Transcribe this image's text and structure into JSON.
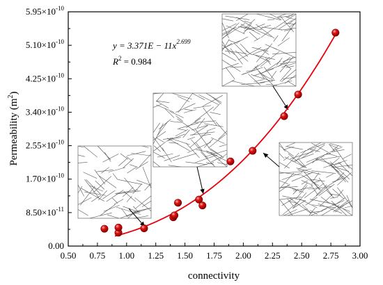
{
  "chart_data": {
    "type": "scatter",
    "xlabel": "connectivity",
    "ylabel_main": "Permeability (m",
    "ylabel_sup": "2",
    "ylabel_close": ")",
    "xlim": [
      0.5,
      3.0
    ],
    "ylim": [
      0,
      5.95e-10
    ],
    "x_ticks": [
      0.5,
      0.75,
      1.0,
      1.25,
      1.5,
      1.75,
      2.0,
      2.25,
      2.5,
      2.75,
      3.0
    ],
    "x_tick_labels": [
      "0.50",
      "0.75",
      "1.00",
      "1.25",
      "1.50",
      "1.75",
      "2.00",
      "2.25",
      "2.50",
      "2.75",
      "3.00"
    ],
    "y_ticks": [
      0,
      8.5e-11,
      1.7e-10,
      2.55e-10,
      3.4e-10,
      4.25e-10,
      5.1e-10,
      5.95e-10
    ],
    "y_tick_labels": [
      {
        "mant": "0.00",
        "exp": ""
      },
      {
        "mant": "8.50×10",
        "exp": "-11"
      },
      {
        "mant": "1.70×10",
        "exp": "-10"
      },
      {
        "mant": "2.55×10",
        "exp": "-10"
      },
      {
        "mant": "3.40×10",
        "exp": "-10"
      },
      {
        "mant": "4.25×10",
        "exp": "-10"
      },
      {
        "mant": "5.10×10",
        "exp": "-10"
      },
      {
        "mant": "5.95×10",
        "exp": "-10"
      }
    ],
    "points": [
      {
        "x": 0.81,
        "y": 4.4e-11
      },
      {
        "x": 0.93,
        "y": 3.4e-11
      },
      {
        "x": 0.93,
        "y": 4.7e-11
      },
      {
        "x": 1.15,
        "y": 4.5e-11
      },
      {
        "x": 1.4,
        "y": 7.3e-11
      },
      {
        "x": 1.41,
        "y": 7.8e-11
      },
      {
        "x": 1.44,
        "y": 1.1e-10
      },
      {
        "x": 1.62,
        "y": 1.18e-10
      },
      {
        "x": 1.65,
        "y": 1.03e-10
      },
      {
        "x": 1.89,
        "y": 2.15e-10
      },
      {
        "x": 2.08,
        "y": 2.42e-10
      },
      {
        "x": 2.35,
        "y": 3.3e-10
      },
      {
        "x": 2.47,
        "y": 3.85e-10
      },
      {
        "x": 2.79,
        "y": 5.42e-10
      }
    ],
    "fit": {
      "coef": 3.371e-11,
      "exponent": 2.699,
      "x_from": 0.9,
      "x_to": 2.79
    },
    "equation": {
      "left": "y = 3.371E",
      "mid": " − 11x",
      "exp": "2.699"
    },
    "r2": {
      "label": "R",
      "sup": "2",
      "value": " = 0.984"
    },
    "colors": {
      "fit": "#e8000b",
      "marker": "#d10a0a",
      "marker_edge": "#7a0000",
      "axis": "#000000",
      "inset": "#555555"
    }
  }
}
